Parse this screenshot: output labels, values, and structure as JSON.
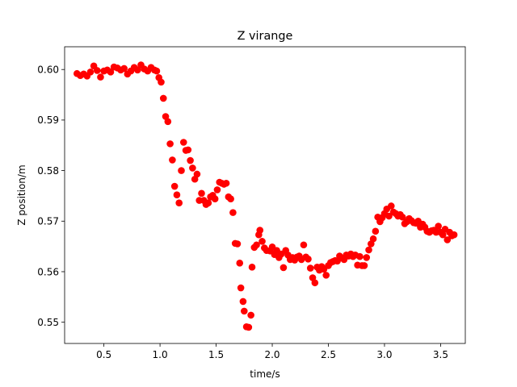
{
  "chart_data": {
    "type": "scatter",
    "title": "Z virange",
    "xlabel": "time/s",
    "ylabel": "Z position/m",
    "xlim": [
      0.15,
      3.72
    ],
    "ylim": [
      0.5458,
      0.6045
    ],
    "xticks": [
      {
        "value": 0.5,
        "label": "0.5"
      },
      {
        "value": 1.0,
        "label": "1.0"
      },
      {
        "value": 1.5,
        "label": "1.5"
      },
      {
        "value": 2.0,
        "label": "2.0"
      },
      {
        "value": 2.5,
        "label": "2.5"
      },
      {
        "value": 3.0,
        "label": "3.0"
      },
      {
        "value": 3.5,
        "label": "3.5"
      }
    ],
    "yticks": [
      {
        "value": 0.55,
        "label": "0.55"
      },
      {
        "value": 0.56,
        "label": "0.56"
      },
      {
        "value": 0.57,
        "label": "0.57"
      },
      {
        "value": 0.58,
        "label": "0.58"
      },
      {
        "value": 0.59,
        "label": "0.59"
      },
      {
        "value": 0.6,
        "label": "0.60"
      }
    ],
    "grid": false,
    "series": [
      {
        "color": "#ff0000",
        "points": [
          [
            0.26,
            0.5992
          ],
          [
            0.29,
            0.5988
          ],
          [
            0.32,
            0.5991
          ],
          [
            0.35,
            0.5987
          ],
          [
            0.38,
            0.5995
          ],
          [
            0.41,
            0.6007
          ],
          [
            0.44,
            0.5998
          ],
          [
            0.47,
            0.5985
          ],
          [
            0.5,
            0.5997
          ],
          [
            0.53,
            0.5999
          ],
          [
            0.56,
            0.5995
          ],
          [
            0.59,
            0.6005
          ],
          [
            0.62,
            0.6003
          ],
          [
            0.65,
            0.5999
          ],
          [
            0.68,
            0.6002
          ],
          [
            0.71,
            0.5991
          ],
          [
            0.74,
            0.5997
          ],
          [
            0.77,
            0.6004
          ],
          [
            0.8,
            0.5999
          ],
          [
            0.83,
            0.6009
          ],
          [
            0.86,
            0.6001
          ],
          [
            0.89,
            0.5997
          ],
          [
            0.92,
            0.6004
          ],
          [
            0.95,
            0.5999
          ],
          [
            0.97,
            0.5997
          ],
          [
            0.99,
            0.5984
          ],
          [
            1.01,
            0.5975
          ],
          [
            1.03,
            0.5943
          ],
          [
            1.05,
            0.5907
          ],
          [
            1.07,
            0.5897
          ],
          [
            1.09,
            0.5853
          ],
          [
            1.11,
            0.5821
          ],
          [
            1.13,
            0.5769
          ],
          [
            1.15,
            0.5752
          ],
          [
            1.17,
            0.5736
          ],
          [
            1.19,
            0.58
          ],
          [
            1.21,
            0.5856
          ],
          [
            1.23,
            0.584
          ],
          [
            1.25,
            0.5841
          ],
          [
            1.27,
            0.582
          ],
          [
            1.29,
            0.5805
          ],
          [
            1.31,
            0.5783
          ],
          [
            1.33,
            0.5793
          ],
          [
            1.35,
            0.5741
          ],
          [
            1.37,
            0.5755
          ],
          [
            1.39,
            0.5741
          ],
          [
            1.41,
            0.5733
          ],
          [
            1.43,
            0.5736
          ],
          [
            1.45,
            0.5748
          ],
          [
            1.47,
            0.5751
          ],
          [
            1.49,
            0.5744
          ],
          [
            1.51,
            0.5762
          ],
          [
            1.53,
            0.5777
          ],
          [
            1.55,
            0.5775
          ],
          [
            1.57,
            0.5773
          ],
          [
            1.59,
            0.5775
          ],
          [
            1.61,
            0.5748
          ],
          [
            1.63,
            0.5744
          ],
          [
            1.65,
            0.5717
          ],
          [
            1.67,
            0.5656
          ],
          [
            1.69,
            0.5655
          ],
          [
            1.71,
            0.5617
          ],
          [
            1.72,
            0.5568
          ],
          [
            1.74,
            0.5541
          ],
          [
            1.75,
            0.5522
          ],
          [
            1.77,
            0.5491
          ],
          [
            1.79,
            0.549
          ],
          [
            1.81,
            0.5514
          ],
          [
            1.82,
            0.5609
          ],
          [
            1.84,
            0.5648
          ],
          [
            1.86,
            0.5653
          ],
          [
            1.88,
            0.5673
          ],
          [
            1.89,
            0.5682
          ],
          [
            1.91,
            0.566
          ],
          [
            1.93,
            0.5647
          ],
          [
            1.95,
            0.5642
          ],
          [
            1.98,
            0.5641
          ],
          [
            2.0,
            0.5649
          ],
          [
            2.02,
            0.5634
          ],
          [
            2.04,
            0.5642
          ],
          [
            2.06,
            0.5628
          ],
          [
            2.08,
            0.5635
          ],
          [
            2.1,
            0.5608
          ],
          [
            2.12,
            0.5642
          ],
          [
            2.14,
            0.5633
          ],
          [
            2.16,
            0.5624
          ],
          [
            2.18,
            0.5628
          ],
          [
            2.2,
            0.5623
          ],
          [
            2.22,
            0.5629
          ],
          [
            2.24,
            0.5631
          ],
          [
            2.26,
            0.5624
          ],
          [
            2.28,
            0.5653
          ],
          [
            2.3,
            0.5629
          ],
          [
            2.32,
            0.5625
          ],
          [
            2.34,
            0.5607
          ],
          [
            2.36,
            0.5588
          ],
          [
            2.38,
            0.5578
          ],
          [
            2.4,
            0.5609
          ],
          [
            2.42,
            0.5603
          ],
          [
            2.44,
            0.561
          ],
          [
            2.46,
            0.5605
          ],
          [
            2.48,
            0.5593
          ],
          [
            2.5,
            0.5612
          ],
          [
            2.52,
            0.5618
          ],
          [
            2.54,
            0.562
          ],
          [
            2.56,
            0.5622
          ],
          [
            2.58,
            0.5621
          ],
          [
            2.6,
            0.5631
          ],
          [
            2.62,
            0.5627
          ],
          [
            2.64,
            0.5624
          ],
          [
            2.66,
            0.5633
          ],
          [
            2.68,
            0.5631
          ],
          [
            2.7,
            0.5635
          ],
          [
            2.72,
            0.563
          ],
          [
            2.74,
            0.5633
          ],
          [
            2.76,
            0.5613
          ],
          [
            2.78,
            0.563
          ],
          [
            2.8,
            0.5612
          ],
          [
            2.82,
            0.5612
          ],
          [
            2.84,
            0.5628
          ],
          [
            2.86,
            0.5643
          ],
          [
            2.88,
            0.5655
          ],
          [
            2.9,
            0.5665
          ],
          [
            2.92,
            0.568
          ],
          [
            2.94,
            0.5708
          ],
          [
            2.96,
            0.5699
          ],
          [
            2.98,
            0.5707
          ],
          [
            3.0,
            0.5715
          ],
          [
            3.02,
            0.5724
          ],
          [
            3.04,
            0.571
          ],
          [
            3.06,
            0.573
          ],
          [
            3.08,
            0.5718
          ],
          [
            3.1,
            0.5715
          ],
          [
            3.12,
            0.571
          ],
          [
            3.14,
            0.5713
          ],
          [
            3.16,
            0.5708
          ],
          [
            3.18,
            0.5695
          ],
          [
            3.2,
            0.5699
          ],
          [
            3.22,
            0.5705
          ],
          [
            3.24,
            0.5701
          ],
          [
            3.26,
            0.5697
          ],
          [
            3.28,
            0.5696
          ],
          [
            3.3,
            0.57
          ],
          [
            3.32,
            0.5688
          ],
          [
            3.34,
            0.5694
          ],
          [
            3.36,
            0.5688
          ],
          [
            3.38,
            0.568
          ],
          [
            3.4,
            0.5678
          ],
          [
            3.42,
            0.5681
          ],
          [
            3.44,
            0.5682
          ],
          [
            3.46,
            0.5678
          ],
          [
            3.48,
            0.569
          ],
          [
            3.5,
            0.5678
          ],
          [
            3.52,
            0.5673
          ],
          [
            3.54,
            0.5684
          ],
          [
            3.56,
            0.5663
          ],
          [
            3.58,
            0.5678
          ],
          [
            3.6,
            0.5671
          ],
          [
            3.62,
            0.5673
          ]
        ]
      }
    ]
  }
}
